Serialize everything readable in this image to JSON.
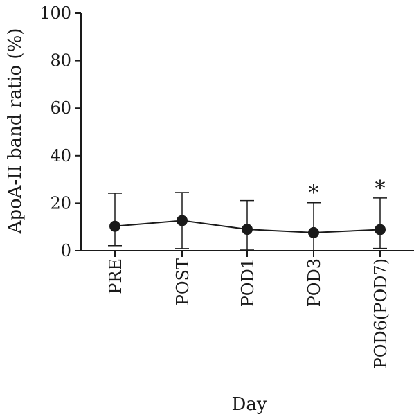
{
  "chart_data": {
    "type": "line",
    "title": "",
    "xlabel": "Day",
    "ylabel": "ApoA-II band ratio (%)",
    "ylim": [
      0,
      100
    ],
    "yticks": [
      0,
      20,
      40,
      60,
      80,
      100
    ],
    "grid": false,
    "legend": "none",
    "categories": [
      "PRE",
      "POST",
      "POD1",
      "POD3",
      "POD6(POD7)"
    ],
    "series": [
      {
        "values": [
          10.3,
          12.7,
          9.0,
          7.6,
          8.9
        ],
        "error_upper": [
          24.2,
          24.5,
          21.1,
          20.2,
          22.2
        ],
        "error_lower": [
          2.1,
          0.9,
          0.3,
          0.0,
          1.0
        ],
        "significance": [
          "",
          "",
          "",
          "*",
          "*"
        ]
      }
    ],
    "colors": {
      "line": "#1a1a1a",
      "marker": "#1a1a1a",
      "axis": "#1a1a1a"
    }
  }
}
